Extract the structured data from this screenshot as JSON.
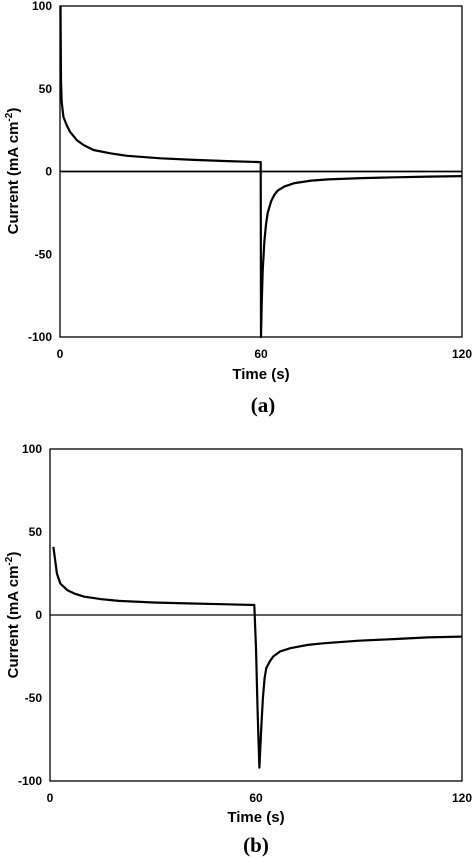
{
  "chart_data": [
    {
      "type": "line",
      "panel_label": "(a)",
      "xlabel": "Time (s)",
      "ylabel": "Current (mA cm",
      "ylabel_sup": "-2",
      "ylabel_close": ")",
      "xlim": [
        0,
        120
      ],
      "ylim": [
        -100,
        100
      ],
      "xticks": [
        0,
        60,
        120
      ],
      "yticks": [
        100,
        50,
        0,
        -50,
        -100
      ],
      "zero_line": true,
      "grid": false,
      "series": [
        {
          "x": [
            0.15,
            0.3,
            0.5,
            1,
            2,
            3,
            5,
            7,
            10,
            15,
            20,
            30,
            40,
            50,
            59.9,
            60.0,
            60.2,
            60.5,
            61,
            61.5,
            62,
            63,
            64,
            65,
            67,
            70,
            75,
            80,
            90,
            100,
            110,
            120
          ],
          "y": [
            100,
            55,
            42,
            33,
            28,
            24,
            19,
            16,
            13,
            11,
            9.5,
            8,
            7,
            6.3,
            5.7,
            -100,
            -80,
            -60,
            -42,
            -32,
            -25,
            -18,
            -14,
            -11.5,
            -9,
            -7,
            -5.5,
            -4.8,
            -4,
            -3.5,
            -3.1,
            -2.8
          ]
        }
      ]
    },
    {
      "type": "line",
      "panel_label": "(b)",
      "xlabel": "Time (s)",
      "ylabel": "Current (mA cm",
      "ylabel_sup": "-2",
      "ylabel_close": ")",
      "xlim": [
        0,
        120
      ],
      "ylim": [
        -100,
        100
      ],
      "xticks": [
        0,
        60,
        120
      ],
      "yticks": [
        100,
        50,
        0,
        -50,
        -100
      ],
      "zero_line": true,
      "grid": false,
      "series": [
        {
          "x": [
            1,
            2,
            3,
            5,
            7,
            10,
            15,
            20,
            30,
            40,
            50,
            59.5,
            60,
            60.5,
            61,
            61.5,
            62,
            62.5,
            63,
            64,
            65,
            67,
            70,
            75,
            80,
            90,
            100,
            110,
            120
          ],
          "y": [
            41,
            25,
            19,
            15,
            13,
            11,
            9.5,
            8.5,
            7.5,
            7,
            6.5,
            6,
            -20,
            -60,
            -92,
            -70,
            -50,
            -38,
            -32,
            -28,
            -25,
            -22,
            -20,
            -18,
            -17,
            -15.5,
            -14.5,
            -13.5,
            -13
          ]
        }
      ]
    }
  ]
}
